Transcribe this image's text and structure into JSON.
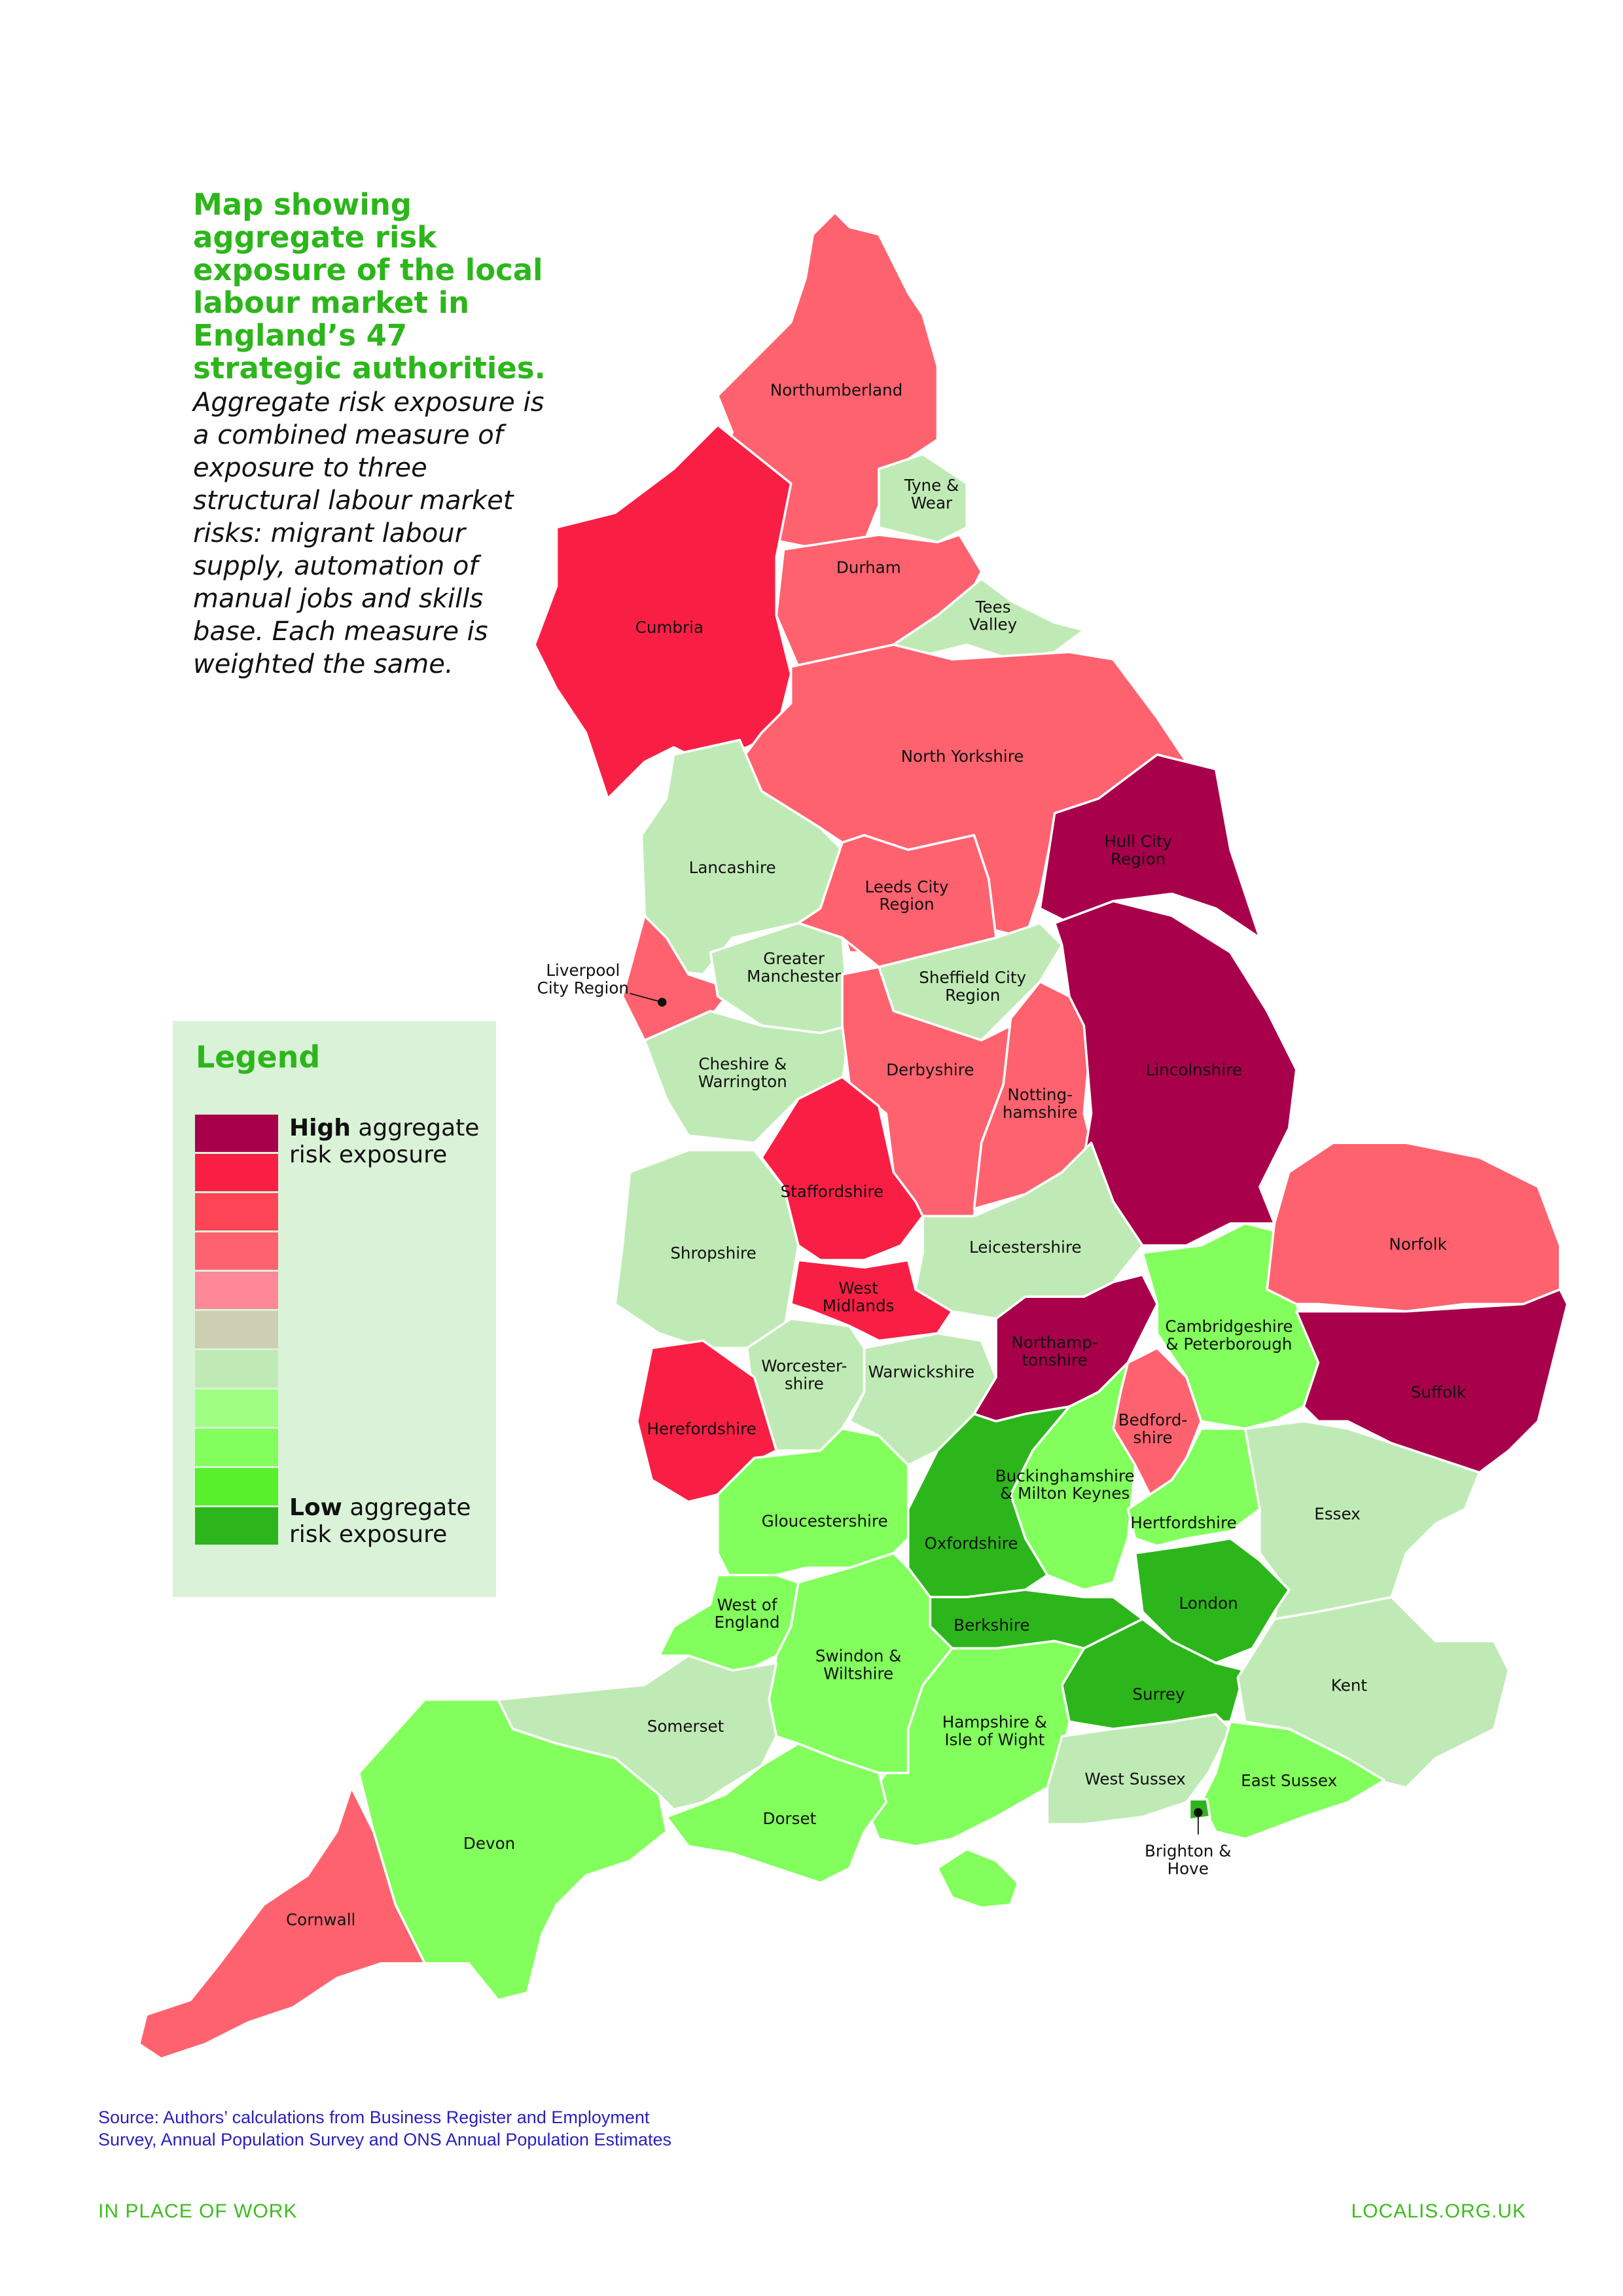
{
  "title": "Map showing aggregate risk exposure of the local labour market in England’s 47 strategic authorities.",
  "description": "Aggregate risk exposure is a combined measure of exposure to three structural labour market risks: migrant labour supply, automation of manual jobs and skills base. Each measure is weighted the same.",
  "legend": {
    "title": "Legend",
    "high_bold": "High",
    "high_rest": " aggregate risk exposure",
    "low_bold": "Low",
    "low_rest": " aggregate risk exposure",
    "colors": [
      "#A8004A",
      "#F91F44",
      "#FF4456",
      "#FF626F",
      "#FF8898",
      "#CDCFB2",
      "#C0EAB5",
      "#9EFF82",
      "#82FF5C",
      "#58EF2C",
      "#2DB61B"
    ]
  },
  "regions": [
    {
      "name": "Northumberland",
      "label": [
        "Northumberland"
      ],
      "level": 4
    },
    {
      "name": "Tyne & Wear",
      "label": [
        "Tyne &",
        "Wear"
      ],
      "level": 7
    },
    {
      "name": "Durham",
      "label": [
        "Durham"
      ],
      "level": 4
    },
    {
      "name": "Tees Valley",
      "label": [
        "Tees",
        "Valley"
      ],
      "level": 7
    },
    {
      "name": "Cumbria",
      "label": [
        "Cumbria"
      ],
      "level": 2
    },
    {
      "name": "North Yorkshire",
      "label": [
        "North Yorkshire"
      ],
      "level": 4
    },
    {
      "name": "Hull City Region",
      "label": [
        "Hull City",
        "Region"
      ],
      "level": 1
    },
    {
      "name": "Lancashire",
      "label": [
        "Lancashire"
      ],
      "level": 7
    },
    {
      "name": "Leeds City Region",
      "label": [
        "Leeds City",
        "Region"
      ],
      "level": 4
    },
    {
      "name": "Liverpool City Region",
      "label": [
        "Liverpool",
        "City Region"
      ],
      "level": 4
    },
    {
      "name": "Greater Manchester",
      "label": [
        "Greater",
        "Manchester"
      ],
      "level": 7
    },
    {
      "name": "Sheffield City Region",
      "label": [
        "Sheffield City",
        "Region"
      ],
      "level": 7
    },
    {
      "name": "Cheshire & Warrington",
      "label": [
        "Cheshire &",
        "Warrington"
      ],
      "level": 7
    },
    {
      "name": "Derbyshire",
      "label": [
        "Derbyshire"
      ],
      "level": 4
    },
    {
      "name": "Nottinghamshire",
      "label": [
        "Notting-",
        "hamshire"
      ],
      "level": 4
    },
    {
      "name": "Lincolnshire",
      "label": [
        "Lincolnshire"
      ],
      "level": 1
    },
    {
      "name": "Staffordshire",
      "label": [
        "Staffordshire"
      ],
      "level": 2
    },
    {
      "name": "Shropshire",
      "label": [
        "Shropshire"
      ],
      "level": 7
    },
    {
      "name": "West Midlands",
      "label": [
        "West",
        "Midlands"
      ],
      "level": 2
    },
    {
      "name": "Leicestershire",
      "label": [
        "Leicestershire"
      ],
      "level": 7
    },
    {
      "name": "Worcestershire",
      "label": [
        "Worcester-",
        "shire"
      ],
      "level": 7
    },
    {
      "name": "Herefordshire",
      "label": [
        "Herefordshire"
      ],
      "level": 2
    },
    {
      "name": "Warwickshire",
      "label": [
        "Warwickshire"
      ],
      "level": 7
    },
    {
      "name": "Northamptonshire",
      "label": [
        "Northamp-",
        "tonshire"
      ],
      "level": 1
    },
    {
      "name": "Cambridgeshire & Peterborough",
      "label": [
        "Cambridgeshire",
        "& Peterborough"
      ],
      "level": 9
    },
    {
      "name": "Norfolk",
      "label": [
        "Norfolk"
      ],
      "level": 4
    },
    {
      "name": "Suffolk",
      "label": [
        "Suffolk"
      ],
      "level": 1
    },
    {
      "name": "Bedfordshire",
      "label": [
        "Bedford-",
        "shire"
      ],
      "level": 4
    },
    {
      "name": "Buckinghamshire & Milton Keynes",
      "label": [
        "Buckinghamshire",
        "& Milton Keynes"
      ],
      "level": 9
    },
    {
      "name": "Oxfordshire",
      "label": [
        "Oxfordshire"
      ],
      "level": 11
    },
    {
      "name": "Gloucestershire",
      "label": [
        "Gloucestershire"
      ],
      "level": 9
    },
    {
      "name": "Hertfordshire",
      "label": [
        "Hertfordshire"
      ],
      "level": 9
    },
    {
      "name": "Essex",
      "label": [
        "Essex"
      ],
      "level": 7
    },
    {
      "name": "London",
      "label": [
        "London"
      ],
      "level": 11
    },
    {
      "name": "Berkshire",
      "label": [
        "Berkshire"
      ],
      "level": 11
    },
    {
      "name": "West of England",
      "label": [
        "West of",
        "England"
      ],
      "level": 9
    },
    {
      "name": "Swindon & Wiltshire",
      "label": [
        "Swindon &",
        "Wiltshire"
      ],
      "level": 9
    },
    {
      "name": "Surrey",
      "label": [
        "Surrey"
      ],
      "level": 11
    },
    {
      "name": "Kent",
      "label": [
        "Kent"
      ],
      "level": 7
    },
    {
      "name": "Hampshire & Isle of Wight",
      "label": [
        "Hampshire &",
        "Isle of Wight"
      ],
      "level": 9
    },
    {
      "name": "West Sussex",
      "label": [
        "West Sussex"
      ],
      "level": 7
    },
    {
      "name": "East Sussex",
      "label": [
        "East Sussex"
      ],
      "level": 9
    },
    {
      "name": "Brighton & Hove",
      "label": [
        "Brighton &",
        "Hove"
      ],
      "level": 11
    },
    {
      "name": "Somerset",
      "label": [
        "Somerset"
      ],
      "level": 7
    },
    {
      "name": "Dorset",
      "label": [
        "Dorset"
      ],
      "level": 9
    },
    {
      "name": "Devon",
      "label": [
        "Devon"
      ],
      "level": 9
    },
    {
      "name": "Cornwall",
      "label": [
        "Cornwall"
      ],
      "level": 4
    }
  ],
  "source": "Source: Authors’ calculations from Business Register and Employment Survey, Annual Population Survey and ONS Annual Population Estimates",
  "footer": {
    "left": "IN PLACE OF WORK",
    "right": "LOCALIS.ORG.UK"
  }
}
